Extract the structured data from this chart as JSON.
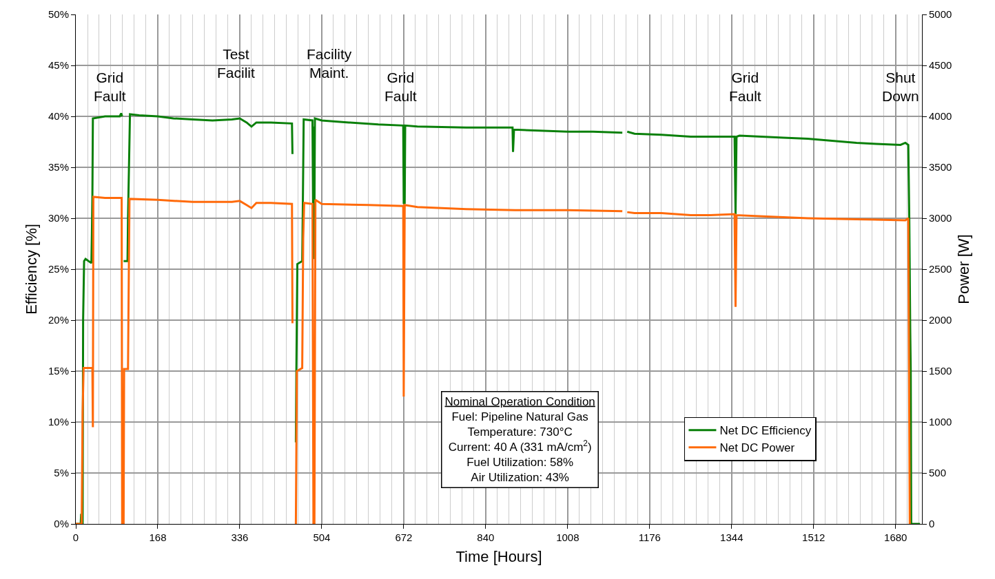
{
  "chart_data": {
    "type": "line",
    "xlabel": "Time [Hours]",
    "ylabel": "Efficiency [%]",
    "y2label": "Power [W]",
    "xlim": [
      0,
      1734
    ],
    "xticks": [
      0,
      168,
      336,
      504,
      672,
      840,
      1008,
      1176,
      1344,
      1512,
      1680
    ],
    "ylim": [
      0,
      50
    ],
    "yticks": [
      {
        "value": 0,
        "label": "0%"
      },
      {
        "value": 5,
        "label": "5%"
      },
      {
        "value": 10,
        "label": "10%"
      },
      {
        "value": 15,
        "label": "15%"
      },
      {
        "value": 20,
        "label": "20%"
      },
      {
        "value": 25,
        "label": "25%"
      },
      {
        "value": 30,
        "label": "30%"
      },
      {
        "value": 35,
        "label": "35%"
      },
      {
        "value": 40,
        "label": "40%"
      },
      {
        "value": 45,
        "label": "45%"
      },
      {
        "value": 50,
        "label": "50%"
      }
    ],
    "y2lim": [
      0,
      5000
    ],
    "y2ticks": [
      0,
      500,
      1000,
      1500,
      2000,
      2500,
      3000,
      3500,
      4000,
      4500,
      5000
    ],
    "grid": true,
    "legend": "bottom right",
    "marker": "none",
    "line_style": "solid",
    "series": [
      {
        "name": "Net DC Efficiency",
        "color": "#0a800a",
        "x": [
          0,
          10,
          11,
          12,
          14,
          15,
          17,
          20,
          32,
          33,
          34,
          35,
          60,
          90,
          93,
          95,
          96,
          98,
          106,
          107,
          111,
          130,
          168,
          200,
          240,
          280,
          320,
          336,
          350,
          360,
          370,
          400,
          443,
          444,
          445,
          451,
          452,
          454,
          464,
          465,
          467,
          485,
          487,
          488,
          489,
          490,
          504,
          560,
          620,
          671,
          672,
          674,
          675,
          700,
          800,
          895,
          896,
          898,
          950,
          1008,
          1060,
          1120,
          1125,
          1130,
          1145,
          1200,
          1260,
          1300,
          1350,
          1352,
          1354,
          1360,
          1450,
          1500,
          1550,
          1600,
          1640,
          1690,
          1700,
          1706,
          1708,
          1710,
          1711,
          1712,
          1730
        ],
        "values": [
          0,
          0,
          1,
          0,
          0,
          20,
          25.8,
          26,
          25.6,
          28.5,
          32,
          39.8,
          40,
          40,
          40.3,
          40,
          null,
          25.8,
          25.8,
          30,
          40.2,
          40.1,
          40,
          39.8,
          39.7,
          39.6,
          39.7,
          39.8,
          39.4,
          39,
          39.4,
          39.4,
          39.3,
          36.3,
          null,
          8,
          15,
          25.5,
          25.8,
          30,
          39.7,
          39.6,
          26,
          39,
          30,
          39.8,
          39.6,
          39.4,
          39.2,
          39.1,
          31.5,
          31.5,
          39.1,
          39,
          38.9,
          38.9,
          36.5,
          38.7,
          38.6,
          38.5,
          38.5,
          38.4,
          null,
          38.5,
          38.3,
          38.2,
          38,
          38,
          38,
          30.4,
          38,
          38.1,
          37.9,
          37.8,
          37.6,
          37.4,
          37.3,
          37.2,
          37.4,
          37.2,
          30,
          18.8,
          15,
          0,
          0
        ]
      },
      {
        "name": "Net DC Power",
        "color": "#ff6a0a",
        "axis": "y2",
        "x": [
          0,
          12,
          14,
          16,
          34,
          35,
          36,
          60,
          94,
          95,
          98,
          99,
          107,
          108,
          110,
          168,
          240,
          320,
          336,
          350,
          360,
          370,
          400,
          443,
          444,
          446,
          451,
          453,
          464,
          466,
          468,
          485,
          487,
          489,
          491,
          504,
          600,
          671,
          672,
          674,
          700,
          800,
          900,
          1008,
          1120,
          1125,
          1130,
          1145,
          1200,
          1260,
          1300,
          1350,
          1352,
          1354,
          1400,
          1500,
          1600,
          1700,
          1706,
          1709
        ],
        "values": [
          0,
          0,
          1100,
          1530,
          1530,
          950,
          3210,
          3200,
          3200,
          0,
          0,
          1520,
          1520,
          2100,
          3190,
          3180,
          3160,
          3160,
          3170,
          3130,
          3100,
          3150,
          3150,
          3140,
          1970,
          null,
          0,
          1500,
          1530,
          2800,
          3150,
          3140,
          0,
          0,
          3180,
          3140,
          3130,
          3120,
          1250,
          3130,
          3110,
          3090,
          3080,
          3080,
          3070,
          null,
          3060,
          3050,
          3050,
          3030,
          3030,
          3040,
          2130,
          3030,
          3020,
          3000,
          2990,
          2980,
          3000,
          0
        ]
      }
    ],
    "annotations": [
      "Grid\nFault",
      "Test\nFacilit",
      "Facility\nMaint.",
      "Grid\nFault",
      "Grid\nFault",
      "Shut\nDown",
      "Nominal Operation Condition\nFuel: Pipeline Natural Gas\nTemperature: 730°C\nCurrent: 40 A (331 mA/cm$^{2}$)\nFuel Utilization: 58%\nAir Utilization: 43%"
    ]
  }
}
